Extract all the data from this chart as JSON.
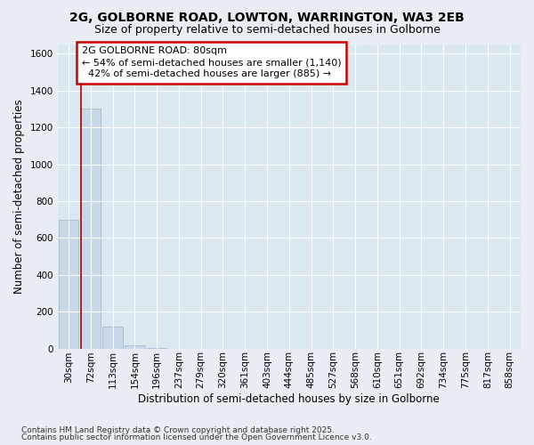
{
  "title": "2G, GOLBORNE ROAD, LOWTON, WARRINGTON, WA3 2EB",
  "subtitle": "Size of property relative to semi-detached houses in Golborne",
  "xlabel": "Distribution of semi-detached houses by size in Golborne",
  "ylabel": "Number of semi-detached properties",
  "bar_labels": [
    "30sqm",
    "72sqm",
    "113sqm",
    "154sqm",
    "196sqm",
    "237sqm",
    "279sqm",
    "320sqm",
    "361sqm",
    "403sqm",
    "444sqm",
    "485sqm",
    "527sqm",
    "568sqm",
    "610sqm",
    "651sqm",
    "692sqm",
    "734sqm",
    "775sqm",
    "817sqm",
    "858sqm"
  ],
  "bar_values": [
    700,
    1300,
    120,
    15,
    2,
    0,
    0,
    0,
    0,
    0,
    0,
    0,
    0,
    0,
    0,
    0,
    0,
    0,
    0,
    0,
    0
  ],
  "bar_color": "#c8d8e8",
  "bar_edge_color": "#9ab4c8",
  "ylim": [
    0,
    1650
  ],
  "yticks": [
    0,
    200,
    400,
    600,
    800,
    1000,
    1200,
    1400,
    1600
  ],
  "property_line_x": 0.55,
  "property_line_color": "#aa0000",
  "annotation_text": "2G GOLBORNE ROAD: 80sqm\n← 54% of semi-detached houses are smaller (1,140)\n  42% of semi-detached houses are larger (885) →",
  "annotation_box_color": "#cc0000",
  "annotation_bg": "#ffffff",
  "footnote1": "Contains HM Land Registry data © Crown copyright and database right 2025.",
  "footnote2": "Contains public sector information licensed under the Open Government Licence v3.0.",
  "fig_bg_color": "#e8eef4",
  "plot_bg_color": "#dce8f0",
  "grid_color": "#ffffff",
  "title_fontsize": 10,
  "subtitle_fontsize": 9,
  "axis_label_fontsize": 8.5,
  "tick_fontsize": 7.5,
  "annotation_fontsize": 8,
  "footnote_fontsize": 6.5
}
